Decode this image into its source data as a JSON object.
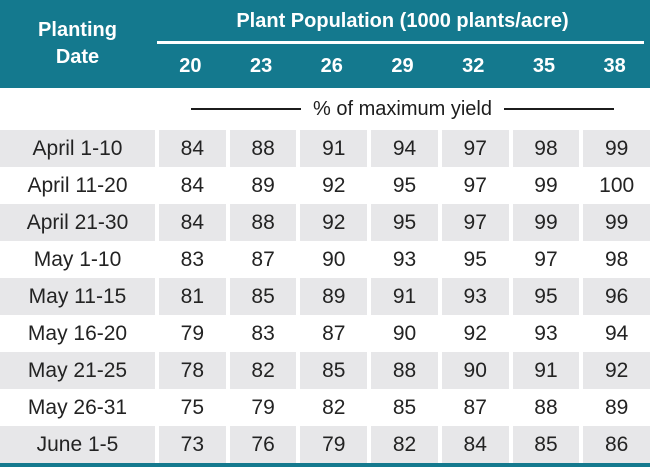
{
  "chart_data": {
    "type": "table",
    "title": "Plant Population (1000 plants/acre)",
    "row_header_label": "Planting Date",
    "row_header_lines": [
      "Planting",
      "Date"
    ],
    "columns": [
      "20",
      "23",
      "26",
      "29",
      "32",
      "35",
      "38"
    ],
    "units_label": "% of maximum yield",
    "rows": [
      {
        "date": "April 1-10",
        "values": [
          84,
          88,
          91,
          94,
          97,
          98,
          99
        ]
      },
      {
        "date": "April 11-20",
        "values": [
          84,
          89,
          92,
          95,
          97,
          99,
          100
        ]
      },
      {
        "date": "April 21-30",
        "values": [
          84,
          88,
          92,
          95,
          97,
          99,
          99
        ]
      },
      {
        "date": "May 1-10",
        "values": [
          83,
          87,
          90,
          93,
          95,
          97,
          98
        ]
      },
      {
        "date": "May 11-15",
        "values": [
          81,
          85,
          89,
          91,
          93,
          95,
          96
        ]
      },
      {
        "date": "May 16-20",
        "values": [
          79,
          83,
          87,
          90,
          92,
          93,
          94
        ]
      },
      {
        "date": "May 21-25",
        "values": [
          78,
          82,
          85,
          88,
          90,
          91,
          92
        ]
      },
      {
        "date": "May 26-31",
        "values": [
          75,
          79,
          82,
          85,
          87,
          88,
          89
        ]
      },
      {
        "date": "June 1-5",
        "values": [
          73,
          76,
          79,
          82,
          84,
          85,
          86
        ]
      }
    ],
    "layout_hints": {
      "stripe_pattern": "odd rows shaded starting with first data row",
      "legend_position": "none",
      "grid": "white gaps between columns"
    }
  },
  "colors": {
    "header_teal": "#14798E",
    "row_stripe_gray": "#E7E7E9",
    "header_text": "#FFFFFF",
    "body_text": "#232323"
  }
}
